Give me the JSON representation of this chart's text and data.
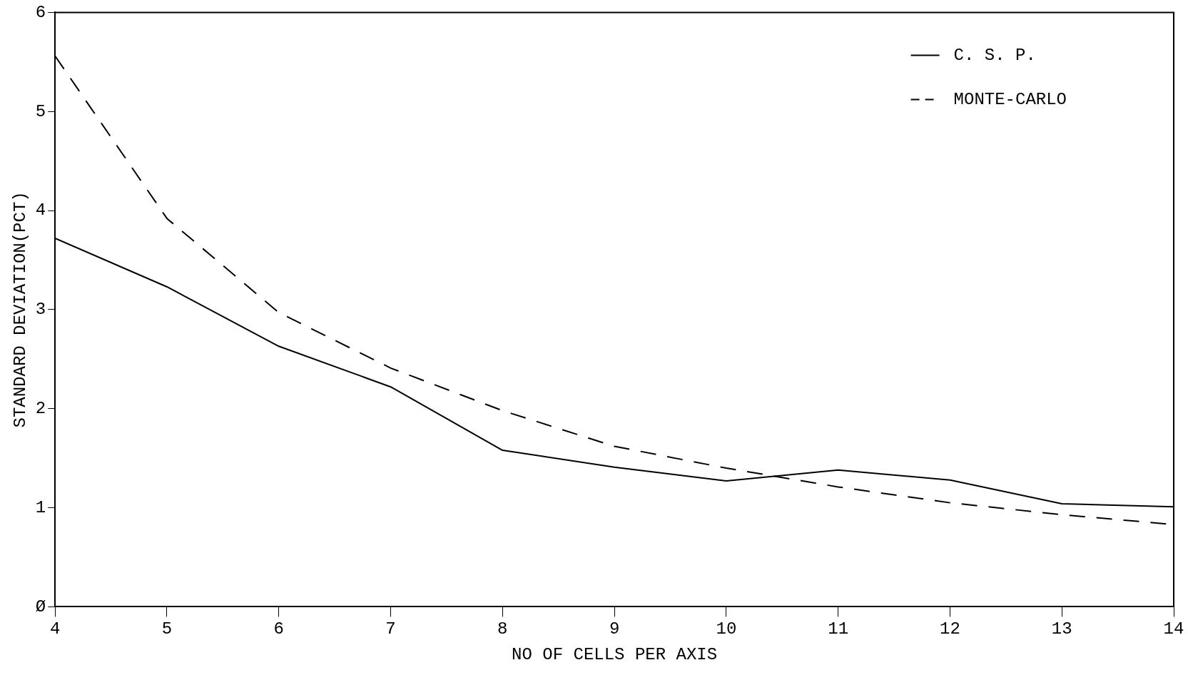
{
  "chart_data": {
    "type": "line",
    "xlabel": "NO OF CELLS PER AXIS",
    "ylabel": "STANDARD DEVIATION(PCT)",
    "x": [
      4,
      5,
      6,
      7,
      8,
      9,
      10,
      11,
      12,
      13,
      14
    ],
    "series": [
      {
        "name": "C. S. P.",
        "color": "#000000",
        "line_style": "solid",
        "values": [
          3.72,
          3.23,
          2.63,
          2.22,
          1.58,
          1.41,
          1.27,
          1.38,
          1.28,
          1.04,
          1.01
        ]
      },
      {
        "name": "MONTE-CARLO",
        "color": "#000000",
        "line_style": "dashed",
        "values": [
          5.56,
          3.92,
          2.97,
          2.41,
          1.98,
          1.62,
          1.4,
          1.21,
          1.05,
          0.93,
          0.83
        ]
      }
    ],
    "xlim": [
      4,
      14
    ],
    "xticks": [
      4,
      5,
      6,
      7,
      8,
      9,
      10,
      11,
      12,
      13,
      14
    ],
    "ylim": [
      0,
      6
    ],
    "yticks": [
      {
        "value": 0,
        "label": "Ø"
      },
      1,
      2,
      3,
      4,
      5,
      6
    ],
    "grid": false,
    "legend": "top right",
    "marker": "none"
  }
}
